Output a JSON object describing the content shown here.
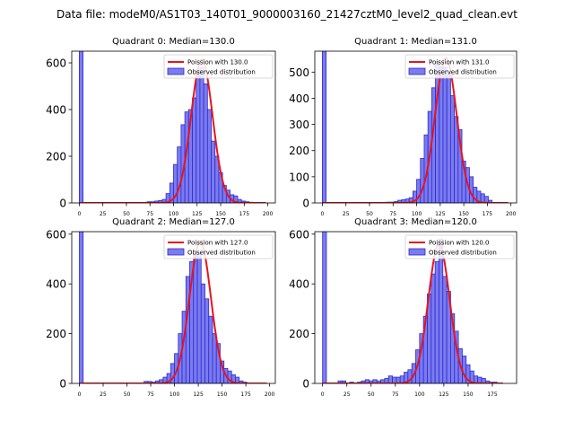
{
  "figure": {
    "suptitle": "Data file: modeM0/AS1T03_140T01_9000003160_21427cztM0_level2_quad_clean.evt"
  },
  "colors": {
    "bar_fill": "#7b7bef",
    "bar_edge": "#2b2bd0",
    "fit_line": "#e8141e",
    "axes": "#000000"
  },
  "chart_data": [
    {
      "type": "bar",
      "title": "Quadrant 0: Median=130.0",
      "legend": {
        "line": "Poission with 130.0",
        "bars": "Observed distribution",
        "placement": "top-right"
      },
      "xlim": [
        -8,
        208
      ],
      "ylim": [
        0,
        650
      ],
      "xticks": [
        0,
        25,
        50,
        75,
        100,
        125,
        150,
        175,
        200
      ],
      "yticks": [
        0,
        200,
        400,
        600
      ],
      "bin_width": 4,
      "bin_starts": [
        0,
        72,
        76,
        80,
        84,
        88,
        92,
        96,
        100,
        104,
        108,
        112,
        116,
        120,
        124,
        128,
        132,
        136,
        140,
        144,
        148,
        152,
        156,
        160,
        164,
        168,
        172,
        176,
        180
      ],
      "counts": [
        650,
        5,
        5,
        8,
        10,
        15,
        40,
        85,
        165,
        240,
        335,
        390,
        400,
        450,
        570,
        580,
        510,
        400,
        265,
        200,
        130,
        75,
        55,
        35,
        30,
        15,
        8,
        5,
        3
      ],
      "fit_mean": 130.0,
      "fit_peak": 615,
      "fit_range": [
        0,
        198
      ]
    },
    {
      "type": "bar",
      "title": "Quadrant 1: Median=131.0",
      "legend": {
        "line": "Poission with 131.0",
        "bars": "Observed distribution",
        "placement": "top-right"
      },
      "xlim": [
        -8,
        206
      ],
      "ylim": [
        0,
        580
      ],
      "xticks": [
        0,
        25,
        50,
        75,
        100,
        125,
        150,
        175,
        200
      ],
      "yticks": [
        0,
        100,
        200,
        300,
        400,
        500
      ],
      "bin_width": 4,
      "bin_starts": [
        0,
        68,
        72,
        76,
        80,
        84,
        88,
        92,
        96,
        100,
        104,
        108,
        112,
        116,
        120,
        124,
        128,
        132,
        136,
        140,
        144,
        148,
        152,
        156,
        160,
        164,
        168,
        172,
        176
      ],
      "counts": [
        580,
        3,
        3,
        5,
        10,
        12,
        15,
        20,
        45,
        90,
        170,
        260,
        350,
        440,
        540,
        520,
        520,
        490,
        410,
        330,
        280,
        160,
        135,
        100,
        60,
        45,
        35,
        25,
        10
      ],
      "fit_mean": 131.0,
      "fit_peak": 555,
      "fit_range": [
        0,
        197
      ]
    },
    {
      "type": "bar",
      "title": "Quadrant 2: Median=127.0",
      "legend": {
        "line": "Poission with 127.0",
        "bars": "Observed distribution",
        "placement": "top-right"
      },
      "xlim": [
        -8,
        206
      ],
      "ylim": [
        0,
        610
      ],
      "xticks": [
        0,
        25,
        50,
        75,
        100,
        125,
        150,
        175,
        200
      ],
      "yticks": [
        0,
        200,
        400,
        600
      ],
      "bin_width": 4,
      "bin_starts": [
        0,
        68,
        72,
        76,
        80,
        84,
        88,
        92,
        96,
        100,
        104,
        108,
        112,
        116,
        120,
        124,
        128,
        132,
        136,
        140,
        144,
        148,
        152,
        156,
        160,
        164,
        168,
        172
      ],
      "counts": [
        610,
        8,
        8,
        5,
        10,
        15,
        25,
        40,
        80,
        120,
        200,
        290,
        430,
        490,
        515,
        525,
        400,
        340,
        270,
        200,
        160,
        90,
        60,
        50,
        35,
        25,
        10,
        5
      ],
      "fit_mean": 127.0,
      "fit_peak": 570,
      "fit_range": [
        0,
        197
      ]
    },
    {
      "type": "bar",
      "title": "Quadrant 3: Median=120.0",
      "legend": {
        "line": "Poission with 120.0",
        "bars": "Observed distribution",
        "placement": "top-right"
      },
      "xlim": [
        -8,
        200
      ],
      "ylim": [
        0,
        610
      ],
      "xticks": [
        0,
        25,
        50,
        75,
        100,
        125,
        150,
        175
      ],
      "yticks": [
        0,
        200,
        400,
        600
      ],
      "bin_width": 4,
      "bin_starts": [
        0,
        16,
        20,
        28,
        36,
        40,
        44,
        48,
        52,
        56,
        60,
        64,
        68,
        72,
        76,
        80,
        84,
        88,
        92,
        96,
        100,
        104,
        108,
        112,
        116,
        120,
        124,
        128,
        132,
        136,
        140,
        144,
        148,
        152,
        156,
        160,
        164,
        168,
        172,
        176
      ],
      "counts": [
        610,
        10,
        10,
        5,
        5,
        10,
        15,
        10,
        15,
        10,
        15,
        20,
        30,
        25,
        25,
        30,
        45,
        55,
        80,
        135,
        200,
        270,
        360,
        440,
        490,
        580,
        430,
        370,
        280,
        210,
        140,
        110,
        75,
        50,
        30,
        25,
        20,
        10,
        5,
        5
      ],
      "fit_mean": 120.0,
      "fit_peak": 560,
      "fit_range": [
        0,
        186
      ]
    }
  ]
}
